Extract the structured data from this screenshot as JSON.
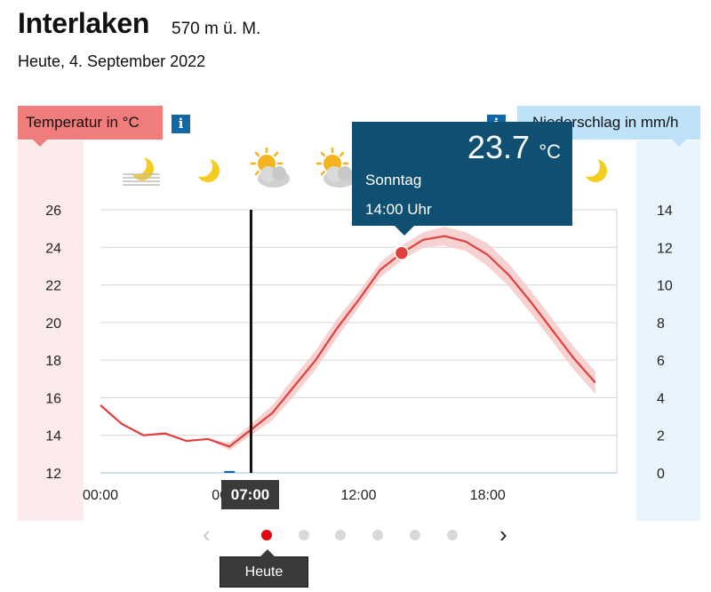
{
  "header": {
    "location": "Interlaken",
    "altitude": "570 m ü. M.",
    "date": "Heute, 4. September 2022"
  },
  "labels": {
    "temperature": "Temperatur in °C",
    "precipitation": "Niederschlag in mm/h",
    "info_symbol": "i"
  },
  "weather_icons": [
    "fog-moon-icon",
    "moon-icon",
    "sun-cloud-icon",
    "sun-cloud-icon",
    "moon-icon"
  ],
  "tooltip": {
    "value": "23.7",
    "unit": "°C",
    "day": "Sonntag",
    "time": "14:00 Uhr"
  },
  "current_time": "07:00",
  "colors": {
    "temperature_line": "#e0413f",
    "temperature_band": "#f7c9c9",
    "tooltip_bg": "#0e4f72",
    "active_dot": "#e30613"
  },
  "navigation": {
    "today_label": "Heute",
    "pages": 6,
    "active_page": 0
  },
  "chart_data": {
    "type": "line",
    "x": [
      0,
      1,
      2,
      3,
      4,
      5,
      6,
      7,
      8,
      9,
      10,
      11,
      12,
      13,
      14,
      15,
      16,
      17,
      18,
      19,
      20,
      21,
      22,
      23
    ],
    "series": [
      {
        "values": [
          15.6,
          14.6,
          14.0,
          14.1,
          13.7,
          13.8,
          13.4,
          14.3,
          15.2,
          16.6,
          18.0,
          19.7,
          21.2,
          22.8,
          23.7,
          24.4,
          24.6,
          24.3,
          23.6,
          22.5,
          21.1,
          19.6,
          18.1,
          16.8
        ]
      }
    ],
    "band": {
      "lower": [
        15.6,
        14.6,
        14.0,
        14.1,
        13.7,
        13.8,
        13.2,
        14.0,
        14.8,
        16.1,
        17.5,
        19.2,
        20.8,
        22.4,
        23.3,
        24.0,
        24.1,
        23.8,
        23.0,
        21.9,
        20.5,
        19.0,
        17.5,
        16.2
      ],
      "upper": [
        15.6,
        14.6,
        14.0,
        14.1,
        13.7,
        13.8,
        13.6,
        14.6,
        15.6,
        17.1,
        18.5,
        20.2,
        21.6,
        23.2,
        24.1,
        24.8,
        25.1,
        24.8,
        24.2,
        23.1,
        21.7,
        20.2,
        18.7,
        17.4
      ]
    },
    "precipitation": [
      0,
      0,
      0,
      0,
      0,
      0,
      0.1,
      0,
      0,
      0,
      0,
      0,
      0,
      0,
      0,
      0,
      0,
      0,
      0,
      0,
      0,
      0,
      0,
      0
    ],
    "x_ticks": [
      {
        "value": 0,
        "label": "00:00"
      },
      {
        "value": 6,
        "label": "06:00"
      },
      {
        "value": 12,
        "label": "12:00"
      },
      {
        "value": 18,
        "label": "18:00"
      }
    ],
    "xlim": [
      0,
      24
    ],
    "y_left": {
      "min": 12,
      "max": 26,
      "ticks": [
        12,
        14,
        16,
        18,
        20,
        22,
        24,
        26
      ]
    },
    "y_right": {
      "min": 0,
      "max": 14,
      "ticks": [
        0,
        2,
        4,
        6,
        8,
        10,
        12,
        14
      ]
    },
    "highlight": {
      "x": 14,
      "y": 23.7
    },
    "current_x": 7
  }
}
